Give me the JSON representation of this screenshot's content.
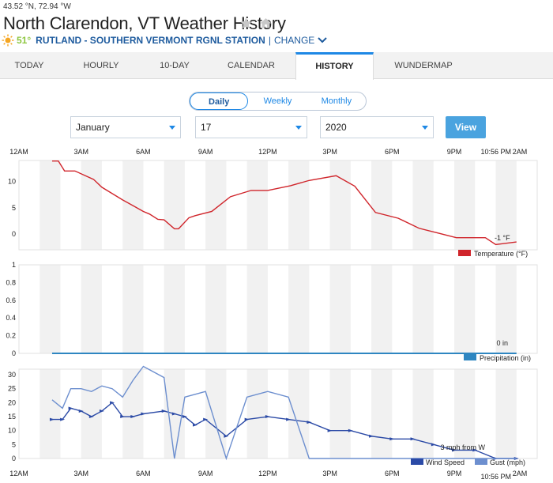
{
  "location": {
    "coords": "43.52 °N, 72.94 °W",
    "title": "North Clarendon, VT Weather History",
    "current_temp": "51°",
    "station": "RUTLAND - SOUTHERN VERMONT RGNL STATION",
    "separator": "|",
    "change_label": "CHANGE"
  },
  "tabs": [
    {
      "label": "TODAY"
    },
    {
      "label": "HOURLY"
    },
    {
      "label": "10-DAY"
    },
    {
      "label": "CALENDAR"
    },
    {
      "label": "HISTORY",
      "active": true
    },
    {
      "label": "WUNDERMAP"
    }
  ],
  "period_toggle": {
    "options": [
      "Daily",
      "Weekly",
      "Monthly"
    ],
    "selected": "Daily"
  },
  "date_selectors": {
    "month": "January",
    "day": "17",
    "year": "2020",
    "view_label": "View"
  },
  "chart_data": [
    {
      "type": "line",
      "x": [
        1.6,
        1.9,
        2.2,
        2.7,
        3.6,
        4.0,
        4.5,
        5.0,
        5.5,
        6.0,
        6.3,
        6.7,
        7.0,
        7.5,
        7.7,
        8.2,
        8.5,
        9.3,
        10.2,
        11.2,
        12.0,
        13.1,
        14.0,
        15.3,
        16.2,
        17.2,
        18.3,
        19.3,
        20.2,
        21.1,
        21.8,
        22.5,
        23.0,
        24.0
      ],
      "series": [
        {
          "name": "Temperature (°F)",
          "color": "#d0252b",
          "values": [
            13.9,
            13.9,
            12.0,
            12.0,
            10.4,
            8.9,
            7.7,
            6.5,
            5.4,
            4.3,
            3.8,
            2.8,
            2.7,
            1.0,
            1.0,
            3.1,
            3.5,
            4.3,
            7.1,
            8.3,
            8.3,
            9.2,
            10.2,
            11.1,
            9.1,
            4.1,
            3.0,
            1.1,
            0.2,
            -0.7,
            -0.7,
            -0.7,
            -2.0,
            -1.5
          ]
        }
      ],
      "ylim": [
        -3,
        14
      ],
      "yticks": [
        0,
        5,
        10
      ],
      "annotation": "-1 °F",
      "legend": "Temperature (°F)"
    },
    {
      "type": "line",
      "x": [
        1.6,
        24.0
      ],
      "series": [
        {
          "name": "Precipitation (in)",
          "color": "#2e86c1",
          "values": [
            0,
            0
          ]
        }
      ],
      "ylim": [
        0,
        1
      ],
      "yticks": [
        0,
        0.2,
        0.4,
        0.6,
        0.8,
        1
      ],
      "annotation": "0 in",
      "legend": "Precipitation (in)"
    },
    {
      "type": "line",
      "x": [
        1.6,
        2.1,
        2.5,
        3.0,
        3.5,
        4.0,
        4.5,
        5.0,
        5.5,
        6.0,
        7.0,
        7.5,
        8.0,
        8.5,
        9.0,
        10.0,
        11.0,
        12.0,
        13.0,
        14.0,
        15.0,
        16.0,
        17.0,
        18.0,
        19.0,
        20.0,
        21.0,
        22.0,
        23.0,
        24.0
      ],
      "series": [
        {
          "name": "Wind Speed (mph)",
          "color": "#2b4aa6",
          "values": [
            14,
            14,
            18,
            17,
            15,
            17,
            20,
            15,
            15,
            16,
            17,
            16,
            15,
            12,
            14,
            8,
            14,
            15,
            14,
            13,
            10,
            10,
            8,
            7,
            7,
            5,
            3,
            3,
            0,
            0
          ]
        },
        {
          "name": "Gust (mph)",
          "color": "#6d8fcf",
          "values": [
            21,
            18,
            25,
            25,
            24,
            26,
            25,
            22,
            28,
            33,
            29,
            0,
            22,
            23,
            24,
            0,
            22,
            24,
            22,
            0,
            0,
            0,
            0,
            0,
            0,
            0,
            0,
            0,
            0,
            0
          ]
        }
      ],
      "ylim": [
        0,
        32
      ],
      "yticks": [
        0,
        5,
        10,
        15,
        20,
        25,
        30
      ],
      "annotation": "3 mph from W",
      "legend": [
        "Wind Speed",
        "Gust (mph)"
      ]
    }
  ],
  "x_axis": {
    "top_labels": [
      "12AM",
      "3AM",
      "6AM",
      "9AM",
      "12PM",
      "3PM",
      "6PM",
      "9PM",
      "2AM"
    ],
    "bottom_labels": [
      "12AM",
      "3AM",
      "6AM",
      "9AM",
      "12PM",
      "3PM",
      "6PM",
      "9PM",
      "2AM"
    ],
    "current_time_top": "10:56 PM",
    "current_time_bottom": "10:56 PM"
  }
}
